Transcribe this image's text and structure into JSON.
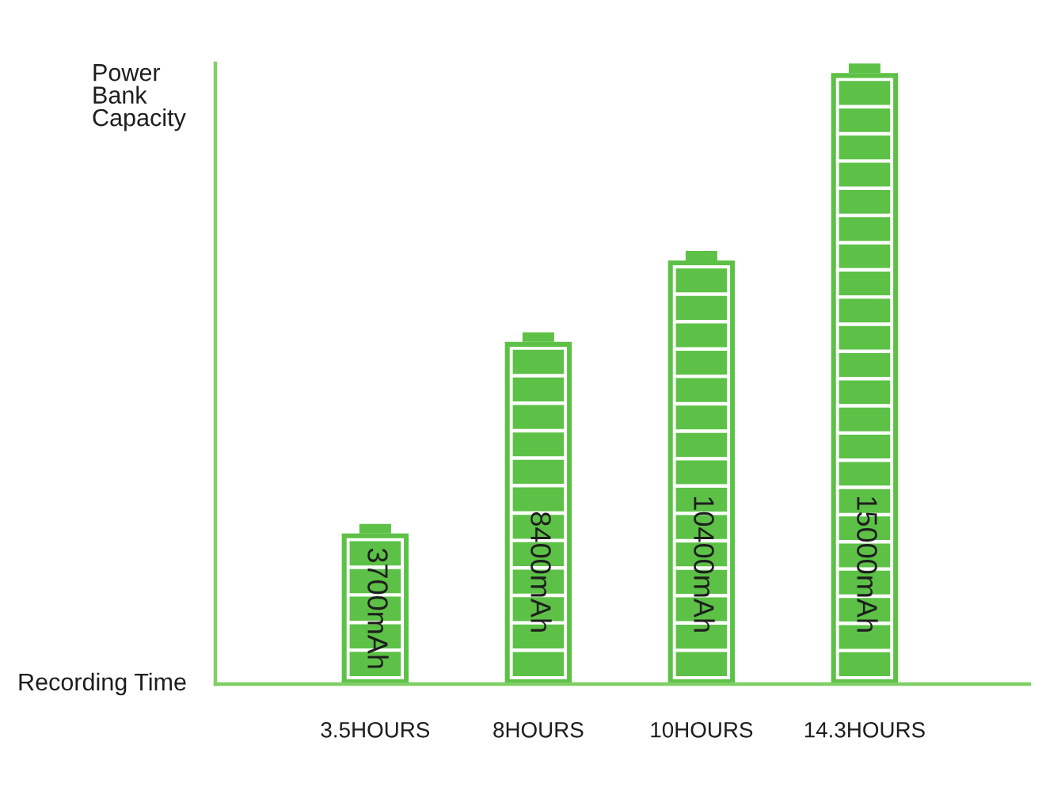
{
  "chart_data": {
    "type": "bar",
    "xlabel": "Recording Time",
    "ylabel": "Power Bank Capacity",
    "categories": [
      "3.5HOURS",
      "8HOURS",
      "10HOURS",
      "14.3HOURS"
    ],
    "values": [
      3700,
      8400,
      10400,
      15000
    ],
    "color": "#5cc146",
    "value_labels": [
      "3700mAh",
      "8400mAh",
      "10400mAh",
      "15000mAh"
    ]
  }
}
